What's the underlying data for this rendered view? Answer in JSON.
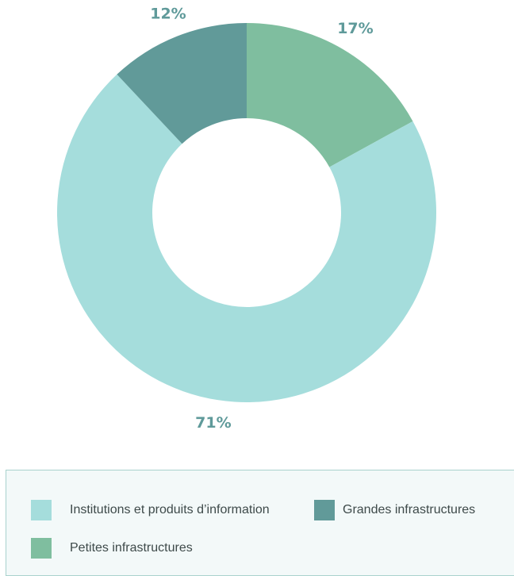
{
  "chart_data": {
    "type": "pie",
    "donut": true,
    "categories": [
      "Petites infrastructures",
      "Institutions et produits d’information",
      "Grandes infrastructures"
    ],
    "values": [
      17,
      71,
      12
    ],
    "labels": [
      "17%",
      "71%",
      "12%"
    ],
    "colors": [
      "#7fbe9f",
      "#a5dddc",
      "#619a99"
    ],
    "legend_placement": "bottom",
    "legend": [
      {
        "label": "Institutions et produits d’information",
        "color": "#a5dddc"
      },
      {
        "label": "Grandes infrastructures",
        "color": "#619a99"
      },
      {
        "label": "Petites infrastructures",
        "color": "#7fbe9f"
      }
    ]
  }
}
